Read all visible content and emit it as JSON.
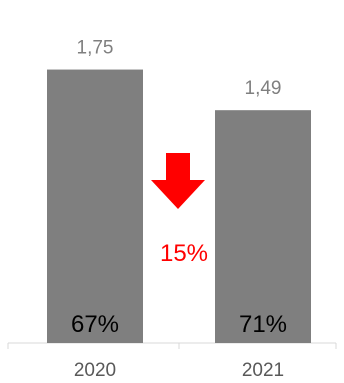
{
  "chart_data": {
    "type": "bar",
    "categories": [
      "2020",
      "2021"
    ],
    "values": [
      1.75,
      1.49
    ],
    "value_labels": [
      "1,75",
      "1,49"
    ],
    "inner_labels": [
      "67%",
      "71%"
    ],
    "change_label": "15%",
    "change_direction": "down",
    "ylim": [
      0,
      1.92
    ],
    "title": "",
    "xlabel": "",
    "ylabel": "",
    "grid": false,
    "legend": "none",
    "colors": {
      "bar": "#7f7f7f",
      "arrow": "#ff0000",
      "change_text": "#ff0000",
      "axis": "#d9d9d9"
    }
  }
}
